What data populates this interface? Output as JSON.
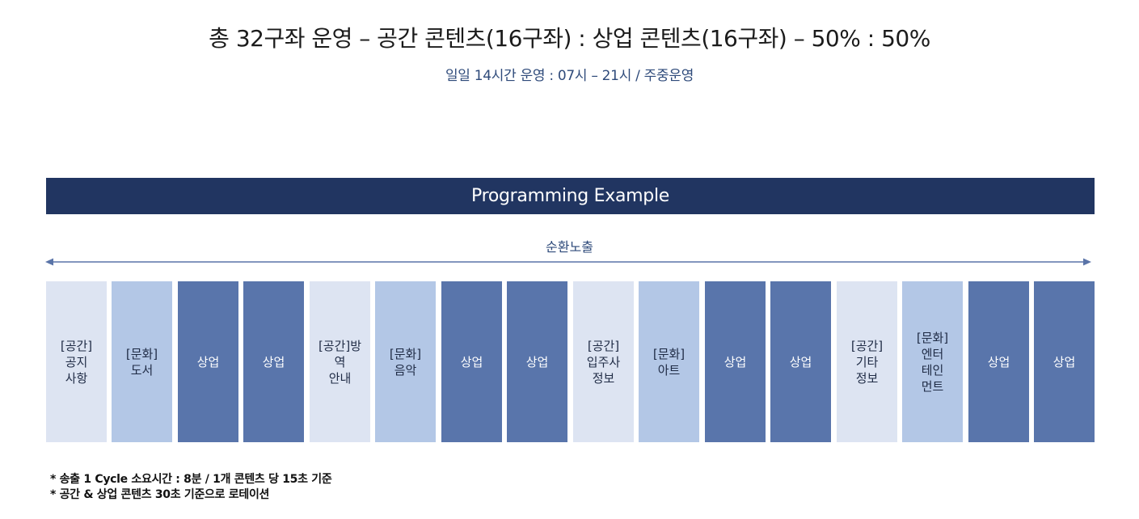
{
  "header": {
    "title": "총 32구좌 운영 – 공간 콘텐츠(16구좌) : 상업 콘텐츠(16구좌) – 50% : 50%",
    "subtitle": "일일 14시간 운영 : 07시 – 21시 / 주중운영"
  },
  "banner": {
    "label": "Programming Example"
  },
  "cycle": {
    "label": "순환노출"
  },
  "colors": {
    "banner": "#213561",
    "space": "#dde4f2",
    "culture": "#b3c7e6",
    "commercial": "#5975ab",
    "accent_text": "#2e4a7a"
  },
  "blocks": [
    {
      "label": "[공간]\n공지\n사항",
      "category": "space"
    },
    {
      "label": "[문화]\n도서",
      "category": "culture"
    },
    {
      "label": "상업",
      "category": "commercial"
    },
    {
      "label": "상업",
      "category": "commercial"
    },
    {
      "label": "[공간]방\n역\n안내",
      "category": "space"
    },
    {
      "label": "[문화]\n음악",
      "category": "culture"
    },
    {
      "label": "상업",
      "category": "commercial"
    },
    {
      "label": "상업",
      "category": "commercial"
    },
    {
      "label": "[공간]\n입주사\n정보",
      "category": "space"
    },
    {
      "label": "[문화]\n아트",
      "category": "culture"
    },
    {
      "label": "상업",
      "category": "commercial"
    },
    {
      "label": "상업",
      "category": "commercial"
    },
    {
      "label": "[공간]\n기타\n정보",
      "category": "space"
    },
    {
      "label": "[문화]\n엔터\n테인\n먼트",
      "category": "culture"
    },
    {
      "label": "상업",
      "category": "commercial"
    },
    {
      "label": "상업",
      "category": "commercial"
    }
  ],
  "notes": [
    "* 송출 1 Cycle 소요시간 : 8분 / 1개 콘텐츠 당 15초 기준",
    "* 공간 & 상업 콘텐츠 30초 기준으로 로테이션"
  ]
}
